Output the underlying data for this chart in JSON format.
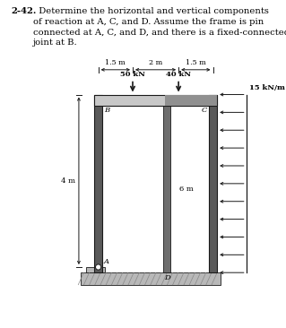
{
  "title_bold": "2-42.",
  "title_rest": "  Determine the horizontal and vertical components\nof reaction at A, C, and D. Assume the frame is pin\nconnected at A, C, and D, and there is a fixed-connected\njoint at B.",
  "load1_label": "50 kN",
  "load2_label": "40 kN",
  "dist_load_label": "15 kN/m",
  "dim1": "1.5 m",
  "dim2": "2 m",
  "dim3": "1.5 m",
  "height_label": "4 m",
  "inner_height_label": "6 m",
  "point_A": "A",
  "point_B": "B",
  "point_C": "C",
  "point_D": "D",
  "bg_color": "#ffffff",
  "col_color": "#5a5a5a",
  "beam_light": "#c8c8c8",
  "beam_dark": "#909090",
  "dark": "#1a1a1a",
  "ground_fill": "#b8b8b8",
  "arrow_color": "#1a1a1a",
  "font_size_title": 7.2,
  "font_size_labels": 6.0,
  "font_size_dim": 5.8
}
